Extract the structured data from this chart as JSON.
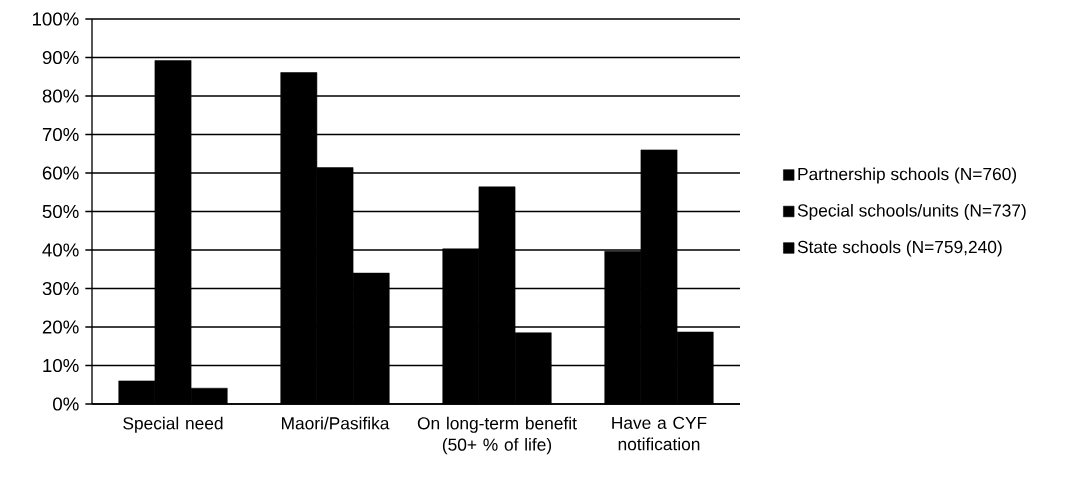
{
  "chart_data": {
    "type": "bar",
    "categories": [
      "Special need",
      "Maori/Pasifika",
      "On long-term benefit (50+ % of life)",
      "Have a CYF notification"
    ],
    "series": [
      {
        "name": "Partnership schools (N=760)",
        "color": "#000000",
        "values": [
          6.0,
          86.1,
          40.3,
          39.7
        ]
      },
      {
        "name": "Special schools/units (N=737)",
        "color": "#000000",
        "values": [
          89.2,
          61.4,
          56.4,
          66.0
        ]
      },
      {
        "name": "State schools (N=759,240)",
        "color": "#000000",
        "values": [
          4.1,
          34.0,
          18.5,
          18.7
        ]
      }
    ],
    "ylim": [
      0,
      100
    ],
    "yticks": [
      {
        "value": 0,
        "label": "0%"
      },
      {
        "value": 10,
        "label": "10%"
      },
      {
        "value": 20,
        "label": "20%"
      },
      {
        "value": 30,
        "label": "30%"
      },
      {
        "value": 40,
        "label": "40%"
      },
      {
        "value": 50,
        "label": "50%"
      },
      {
        "value": 60,
        "label": "60%"
      },
      {
        "value": 70,
        "label": "70%"
      },
      {
        "value": 80,
        "label": "80%"
      },
      {
        "value": 90,
        "label": "90%"
      },
      {
        "value": 100,
        "label": "100%"
      }
    ],
    "grid": "y",
    "legend": "right"
  }
}
